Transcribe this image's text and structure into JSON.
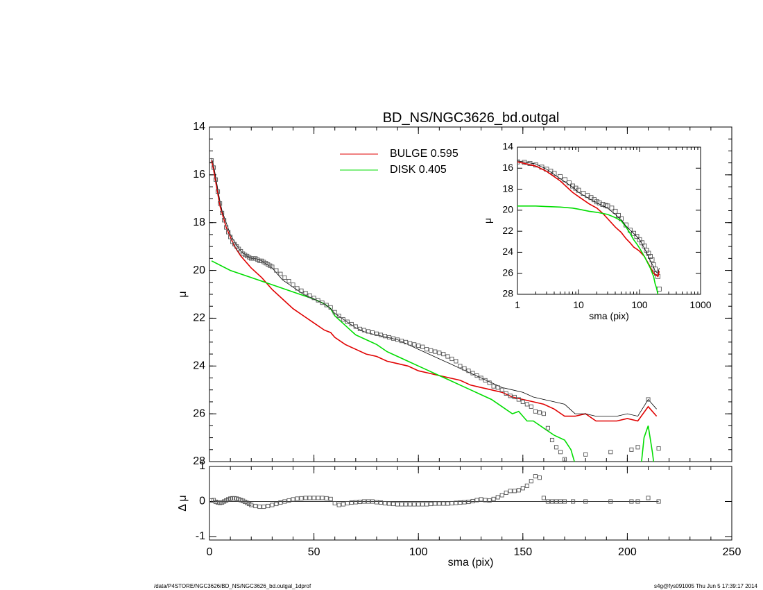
{
  "title": "BD_NS/NGC3626_bd.outgal",
  "footer": {
    "path": "/data/P4STORE/NGC3626/BD_NS/NGC3626_bd.outgal_1dprof",
    "stamp": "s4g@fys091005  Thu Jun  5 17:39:17 2014"
  },
  "legend": [
    {
      "label": "BULGE  0.595",
      "color": "#e00000"
    },
    {
      "label": "DISK  0.405",
      "color": "#00dd00"
    }
  ],
  "colors": {
    "bulge": "#e00000",
    "disk": "#00dd00",
    "total": "#000000",
    "data": "#555555"
  },
  "chart_data": [
    {
      "type": "scatter",
      "title": "BD_NS/NGC3626_bd.outgal",
      "xlabel": "sma (pix)",
      "ylabel": "μ",
      "xlim": [
        0,
        250
      ],
      "ylim": [
        28,
        14
      ],
      "xticks": [
        "0",
        "50",
        "100",
        "150",
        "200",
        "250"
      ],
      "yticks": [
        "14",
        "16",
        "18",
        "20",
        "22",
        "24",
        "26",
        "28"
      ],
      "series": [
        {
          "name": "BULGE  0.595",
          "kind": "line",
          "color": "#e00000",
          "x": [
            1,
            2,
            3,
            4,
            5,
            6,
            8,
            10,
            12,
            15,
            20,
            25,
            30,
            35,
            40,
            45,
            50,
            55,
            58,
            60,
            65,
            70,
            75,
            80,
            85,
            90,
            95,
            100,
            105,
            110,
            115,
            120,
            125,
            130,
            135,
            140,
            145,
            150,
            155,
            160,
            165,
            170,
            175,
            180,
            185,
            190,
            195,
            200,
            205,
            210,
            214
          ],
          "y": [
            15.4,
            15.8,
            16.3,
            16.8,
            17.3,
            17.6,
            18.2,
            18.6,
            19.0,
            19.4,
            19.9,
            20.3,
            20.8,
            21.2,
            21.6,
            21.9,
            22.2,
            22.5,
            22.6,
            22.8,
            23.1,
            23.3,
            23.5,
            23.6,
            23.8,
            23.9,
            24.0,
            24.2,
            24.3,
            24.4,
            24.5,
            24.6,
            24.8,
            24.9,
            25.0,
            25.1,
            25.3,
            25.4,
            25.5,
            25.6,
            25.8,
            26.1,
            26.1,
            26.0,
            26.3,
            26.3,
            26.3,
            26.2,
            26.3,
            25.7,
            26.1
          ]
        },
        {
          "name": "DISK  0.405",
          "kind": "line",
          "color": "#00dd00",
          "x": [
            1,
            10,
            20,
            30,
            40,
            50,
            55,
            58,
            60,
            65,
            70,
            75,
            80,
            85,
            90,
            95,
            100,
            105,
            110,
            115,
            120,
            125,
            130,
            135,
            140,
            145,
            148,
            150,
            152,
            155,
            160,
            165,
            170,
            173,
            175,
            200,
            205,
            208,
            210,
            212,
            214
          ],
          "y": [
            19.6,
            20.0,
            20.3,
            20.6,
            20.9,
            21.2,
            21.4,
            21.6,
            21.9,
            22.3,
            22.7,
            22.9,
            23.1,
            23.4,
            23.6,
            23.8,
            24.0,
            24.2,
            24.4,
            24.6,
            24.8,
            25.0,
            25.2,
            25.4,
            25.7,
            26.0,
            25.9,
            26.1,
            26.3,
            26.3,
            26.6,
            26.9,
            27.1,
            27.5,
            28.1,
            28.1,
            29.5,
            27.0,
            26.5,
            27.6,
            29.0
          ]
        },
        {
          "name": "",
          "kind": "line",
          "color": "#000000",
          "x": [
            1,
            2,
            3,
            4,
            5,
            6,
            8,
            10,
            12,
            15,
            18,
            20,
            22,
            25,
            30,
            35,
            40,
            45,
            50,
            55,
            58,
            60,
            65,
            70,
            75,
            80,
            85,
            90,
            95,
            100,
            105,
            110,
            115,
            120,
            125,
            130,
            135,
            140,
            145,
            150,
            155,
            160,
            165,
            170,
            175,
            180,
            185,
            190,
            195,
            200,
            205,
            210,
            214
          ],
          "y": [
            15.3,
            15.6,
            16.1,
            16.6,
            17.1,
            17.5,
            18.0,
            18.5,
            18.8,
            19.2,
            19.4,
            19.5,
            19.5,
            19.6,
            19.9,
            20.4,
            20.7,
            21.0,
            21.2,
            21.4,
            21.6,
            21.8,
            22.1,
            22.4,
            22.6,
            22.7,
            22.8,
            22.9,
            23.1,
            23.3,
            23.5,
            23.7,
            23.9,
            24.1,
            24.3,
            24.5,
            24.7,
            24.9,
            25.0,
            25.1,
            25.3,
            25.4,
            25.5,
            25.6,
            26.0,
            26.0,
            26.1,
            26.1,
            26.1,
            26.0,
            26.1,
            25.4,
            25.8
          ]
        },
        {
          "name": "",
          "kind": "points",
          "color": "#555555",
          "x": [
            1,
            2,
            3,
            4,
            5,
            6,
            7,
            8,
            9,
            10,
            11,
            12,
            13,
            14,
            15,
            16,
            17,
            18,
            19,
            20,
            21,
            22,
            23,
            24,
            25,
            26,
            27,
            28,
            29,
            30,
            32,
            34,
            36,
            38,
            40,
            42,
            44,
            46,
            48,
            50,
            52,
            54,
            56,
            58,
            60,
            62,
            64,
            66,
            68,
            70,
            72,
            74,
            76,
            78,
            80,
            82,
            84,
            86,
            88,
            90,
            92,
            94,
            96,
            98,
            100,
            102,
            104,
            106,
            108,
            110,
            112,
            114,
            116,
            118,
            120,
            122,
            124,
            126,
            128,
            130,
            132,
            134,
            136,
            138,
            140,
            142,
            144,
            146,
            148,
            150,
            152,
            154,
            156,
            158,
            160,
            162,
            164,
            166,
            168,
            170,
            174,
            180,
            192,
            202,
            205,
            210,
            215
          ],
          "y": [
            15.4,
            15.7,
            16.2,
            16.7,
            17.2,
            17.6,
            17.9,
            18.2,
            18.4,
            18.6,
            18.8,
            18.9,
            19.0,
            19.1,
            19.2,
            19.3,
            19.35,
            19.4,
            19.45,
            19.5,
            19.5,
            19.5,
            19.55,
            19.6,
            19.6,
            19.65,
            19.7,
            19.75,
            19.8,
            19.85,
            20.0,
            20.15,
            20.3,
            20.45,
            20.6,
            20.75,
            20.85,
            20.95,
            21.05,
            21.15,
            21.25,
            21.35,
            21.45,
            21.55,
            21.75,
            21.9,
            22.05,
            22.15,
            22.25,
            22.35,
            22.45,
            22.5,
            22.55,
            22.6,
            22.65,
            22.7,
            22.75,
            22.8,
            22.85,
            22.9,
            22.95,
            23.0,
            23.05,
            23.1,
            23.15,
            23.2,
            23.3,
            23.35,
            23.4,
            23.45,
            23.5,
            23.6,
            23.7,
            23.8,
            24.0,
            24.1,
            24.2,
            24.3,
            24.4,
            24.5,
            24.6,
            24.7,
            24.85,
            24.9,
            25.0,
            25.15,
            25.25,
            25.3,
            25.4,
            25.5,
            25.6,
            25.7,
            25.9,
            25.95,
            26.0,
            26.6,
            27.1,
            27.4,
            27.6,
            27.9,
            28.2,
            27.7,
            27.6,
            27.5,
            27.4,
            25.4,
            27.45
          ]
        }
      ]
    },
    {
      "type": "scatter",
      "xlabel": "sma (pix)",
      "ylabel": "μ",
      "xscale": "log",
      "xlim": [
        1,
        1000
      ],
      "ylim": [
        28,
        14
      ],
      "xticks": [
        "1",
        "10",
        "100",
        "1000"
      ],
      "yticks": [
        "14",
        "16",
        "18",
        "20",
        "22",
        "24",
        "26",
        "28"
      ],
      "series": [
        {
          "name": "",
          "kind": "points",
          "color": "#555555",
          "x": [
            1,
            1.3,
            1.6,
            2,
            2.5,
            3,
            3.5,
            4,
            5,
            6,
            7,
            8,
            9,
            10,
            12,
            14,
            16,
            18,
            20,
            22,
            25,
            28,
            30,
            35,
            40,
            45,
            50,
            60,
            70,
            80,
            90,
            100,
            110,
            120,
            130,
            140,
            150,
            160,
            170,
            180,
            190,
            200,
            210
          ],
          "y": [
            15.4,
            15.45,
            15.55,
            15.7,
            15.9,
            16.1,
            16.3,
            16.5,
            16.8,
            17.1,
            17.4,
            17.7,
            17.9,
            18.1,
            18.4,
            18.6,
            18.8,
            19.0,
            19.2,
            19.3,
            19.45,
            19.55,
            19.6,
            19.8,
            20.1,
            20.5,
            20.8,
            21.4,
            21.9,
            22.2,
            22.5,
            22.8,
            23.1,
            23.4,
            23.8,
            24.1,
            24.4,
            24.7,
            25.2,
            25.6,
            26.0,
            26.3,
            27.5
          ]
        },
        {
          "name": "",
          "kind": "line",
          "color": "#e00000",
          "x": [
            1,
            2,
            3,
            5,
            8,
            10,
            15,
            20,
            25,
            30,
            40,
            50,
            60,
            70,
            80,
            90,
            100,
            120,
            150,
            170,
            180,
            190,
            200,
            210
          ],
          "y": [
            15.4,
            15.8,
            16.3,
            17.2,
            18.3,
            18.7,
            19.4,
            19.8,
            20.3,
            20.8,
            21.6,
            22.1,
            22.7,
            23.1,
            23.5,
            23.7,
            23.9,
            24.4,
            25.4,
            26.0,
            26.1,
            26.2,
            26.3,
            25.8
          ]
        },
        {
          "name": "",
          "kind": "line",
          "color": "#00dd00",
          "x": [
            1,
            2,
            3,
            5,
            8,
            10,
            15,
            20,
            30,
            40,
            50,
            60,
            70,
            80,
            90,
            100,
            120,
            150,
            170,
            180,
            190,
            200,
            205
          ],
          "y": [
            19.6,
            19.6,
            19.65,
            19.7,
            19.8,
            19.9,
            20.1,
            20.2,
            20.4,
            20.7,
            21.0,
            21.6,
            22.2,
            22.8,
            23.2,
            23.6,
            24.4,
            25.5,
            26.3,
            27.0,
            27.4,
            28.0,
            28.2
          ]
        },
        {
          "name": "",
          "kind": "line",
          "color": "#000000",
          "x": [
            1,
            2,
            3,
            5,
            8,
            10,
            15,
            20,
            30,
            40,
            50,
            60,
            70,
            80,
            90,
            100,
            120,
            150,
            170,
            180,
            190,
            200,
            210
          ],
          "y": [
            15.3,
            15.6,
            16.1,
            17.0,
            17.8,
            18.3,
            18.9,
            19.3,
            19.8,
            20.4,
            20.9,
            21.5,
            21.9,
            22.2,
            22.5,
            22.8,
            23.6,
            24.8,
            25.4,
            25.8,
            25.9,
            26.0,
            25.5
          ]
        }
      ]
    },
    {
      "type": "scatter",
      "xlabel": "sma (pix)",
      "ylabel": "Δ μ",
      "xlim": [
        0,
        250
      ],
      "ylim": [
        -1.1,
        1.0
      ],
      "xticks": [
        "0",
        "50",
        "100",
        "150",
        "200",
        "250"
      ],
      "yticks": [
        "1",
        "0",
        "-1"
      ],
      "series": [
        {
          "name": "",
          "kind": "points",
          "color": "#555555",
          "x": [
            1,
            2,
            3,
            4,
            5,
            6,
            7,
            8,
            9,
            10,
            11,
            12,
            13,
            14,
            15,
            16,
            17,
            18,
            19,
            20,
            22,
            24,
            26,
            28,
            30,
            32,
            34,
            36,
            38,
            40,
            42,
            44,
            46,
            48,
            50,
            52,
            54,
            56,
            58,
            60,
            62,
            64,
            66,
            68,
            70,
            72,
            74,
            76,
            78,
            80,
            82,
            84,
            86,
            88,
            90,
            92,
            94,
            96,
            98,
            100,
            102,
            104,
            106,
            108,
            110,
            112,
            114,
            116,
            118,
            120,
            122,
            124,
            126,
            128,
            130,
            132,
            134,
            136,
            138,
            140,
            142,
            144,
            146,
            148,
            150,
            152,
            154,
            156,
            158,
            160,
            162,
            164,
            166,
            168,
            170,
            174,
            180,
            192,
            202,
            205,
            210,
            215
          ],
          "y": [
            0.03,
            0.04,
            -0.01,
            -0.03,
            -0.04,
            -0.03,
            0.0,
            0.03,
            0.06,
            0.08,
            0.09,
            0.09,
            0.08,
            0.06,
            0.04,
            0.02,
            -0.01,
            -0.04,
            -0.07,
            -0.1,
            -0.13,
            -0.15,
            -0.15,
            -0.13,
            -0.1,
            -0.07,
            -0.03,
            0.0,
            0.03,
            0.06,
            0.08,
            0.09,
            0.1,
            0.1,
            0.1,
            0.1,
            0.1,
            0.09,
            0.07,
            -0.05,
            -0.1,
            -0.08,
            -0.05,
            -0.03,
            -0.02,
            -0.01,
            0.0,
            0.0,
            0.0,
            -0.02,
            -0.03,
            -0.05,
            -0.06,
            -0.07,
            -0.08,
            -0.08,
            -0.08,
            -0.08,
            -0.08,
            -0.08,
            -0.08,
            -0.08,
            -0.07,
            -0.06,
            -0.06,
            -0.06,
            -0.06,
            -0.05,
            -0.04,
            -0.03,
            -0.02,
            -0.01,
            0.01,
            0.04,
            0.06,
            0.04,
            0.03,
            0.07,
            0.12,
            0.18,
            0.25,
            0.3,
            0.3,
            0.32,
            0.38,
            0.45,
            0.58,
            0.72,
            0.68,
            0.1,
            0.0,
            0.0,
            0.0,
            0.0,
            0.0,
            0.0,
            0.0,
            0.0,
            0.0,
            0.0,
            0.1,
            0.0
          ]
        }
      ]
    }
  ]
}
